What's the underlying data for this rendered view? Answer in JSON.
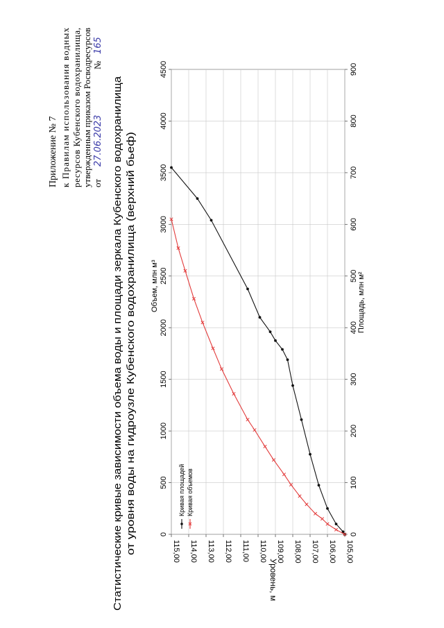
{
  "appendix": {
    "line1": "Приложение № 7",
    "line2": "к Правилам использования водных",
    "line3": "ресурсов Кубенского водохранилища,",
    "line4": "утвержденным приказом Росводресурсов",
    "from_label": "от",
    "date": "27.06.2023",
    "number_label": "№",
    "number": "165"
  },
  "chart_data": {
    "type": "line",
    "title": "Статистические кривые зависимости объема воды и площади зеркала Кубенского водохранилища",
    "subtitle": "от уровня воды на гидроузле Кубенского водохранилища (верхний бьеф)",
    "ylabel": "Уровень, м",
    "xlabel_top": "Объем, млн м³",
    "xlabel_bottom": "Площадь, млн м²",
    "level_range": [
      105.0,
      115.0
    ],
    "level_ticks": [
      "105,00",
      "106,00",
      "107,00",
      "108,00",
      "109,00",
      "110,00",
      "111,00",
      "112,00",
      "113,00",
      "114,00",
      "115,00"
    ],
    "volume_range": [
      0,
      4500
    ],
    "volume_ticks": [
      "0",
      "500",
      "1000",
      "1500",
      "2000",
      "2500",
      "3000",
      "3500",
      "4000",
      "4500"
    ],
    "area_range": [
      0,
      900
    ],
    "area_ticks": [
      "0",
      "100",
      "200",
      "300",
      "400",
      "500",
      "600",
      "700",
      "800",
      "900"
    ],
    "grid": true,
    "legend_position": "bottom-left",
    "series": [
      {
        "name": "Кривая площадей",
        "axis": "area",
        "color": "#111111",
        "marker": "dot",
        "points": [
          [
            105.0,
            0
          ],
          [
            105.1,
            5
          ],
          [
            105.5,
            20
          ],
          [
            106.0,
            50
          ],
          [
            106.5,
            95
          ],
          [
            107.0,
            155
          ],
          [
            107.5,
            222
          ],
          [
            108.0,
            288
          ],
          [
            108.3,
            338
          ],
          [
            108.6,
            358
          ],
          [
            109.0,
            375
          ],
          [
            109.3,
            392
          ],
          [
            109.9,
            420
          ],
          [
            110.6,
            475
          ],
          [
            112.7,
            608
          ],
          [
            113.5,
            650
          ],
          [
            115.0,
            710
          ]
        ]
      },
      {
        "name": "Кривая объемов",
        "axis": "volume",
        "color": "#e23b3b",
        "marker": "x",
        "points": [
          [
            105.0,
            0
          ],
          [
            105.5,
            45
          ],
          [
            106.0,
            100
          ],
          [
            106.3,
            150
          ],
          [
            106.7,
            200
          ],
          [
            107.2,
            290
          ],
          [
            107.6,
            370
          ],
          [
            108.1,
            480
          ],
          [
            108.5,
            580
          ],
          [
            109.1,
            720
          ],
          [
            109.6,
            850
          ],
          [
            110.2,
            1010
          ],
          [
            110.6,
            1110
          ],
          [
            111.4,
            1360
          ],
          [
            112.1,
            1600
          ],
          [
            112.6,
            1800
          ],
          [
            113.2,
            2050
          ],
          [
            113.7,
            2280
          ],
          [
            114.2,
            2550
          ],
          [
            114.6,
            2770
          ],
          [
            115.0,
            3050
          ]
        ]
      }
    ]
  }
}
